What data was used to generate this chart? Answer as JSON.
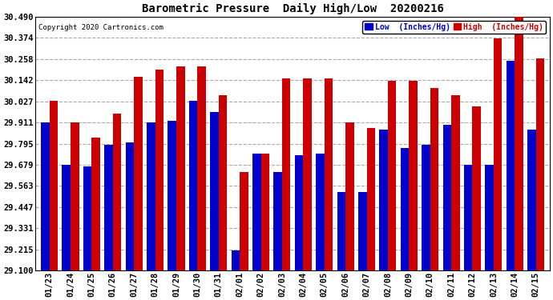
{
  "title": "Barometric Pressure  Daily High/Low  20200216",
  "copyright": "Copyright 2020 Cartronics.com",
  "background_color": "#ffffff",
  "plot_bg_color": "#ffffff",
  "grid_color": "#aaaaaa",
  "dates": [
    "01/23",
    "01/24",
    "01/25",
    "01/26",
    "01/27",
    "01/28",
    "01/29",
    "01/30",
    "01/31",
    "02/01",
    "02/02",
    "02/03",
    "02/04",
    "02/05",
    "02/06",
    "02/07",
    "02/08",
    "02/09",
    "02/10",
    "02/11",
    "02/12",
    "02/13",
    "02/14",
    "02/15"
  ],
  "low_values": [
    29.91,
    29.68,
    29.67,
    29.79,
    29.8,
    29.91,
    29.92,
    30.03,
    29.97,
    29.21,
    29.74,
    29.64,
    29.73,
    29.74,
    29.53,
    29.53,
    29.87,
    29.77,
    29.79,
    29.9,
    29.68,
    29.68,
    30.25,
    29.87
  ],
  "high_values": [
    30.03,
    29.91,
    29.83,
    29.96,
    30.16,
    30.2,
    30.22,
    30.22,
    30.06,
    29.64,
    29.74,
    30.15,
    30.15,
    30.15,
    29.91,
    29.88,
    30.14,
    30.14,
    30.1,
    30.06,
    30.0,
    30.37,
    30.49,
    30.26
  ],
  "low_color": "#0000cc",
  "high_color": "#cc0000",
  "ylim_min": 29.1,
  "ylim_max": 30.49,
  "yticks": [
    29.1,
    29.215,
    29.331,
    29.447,
    29.563,
    29.679,
    29.795,
    29.911,
    30.027,
    30.142,
    30.258,
    30.374,
    30.49
  ],
  "legend_low_label": "Low  (Inches/Hg)",
  "legend_high_label": "High  (Inches/Hg)"
}
